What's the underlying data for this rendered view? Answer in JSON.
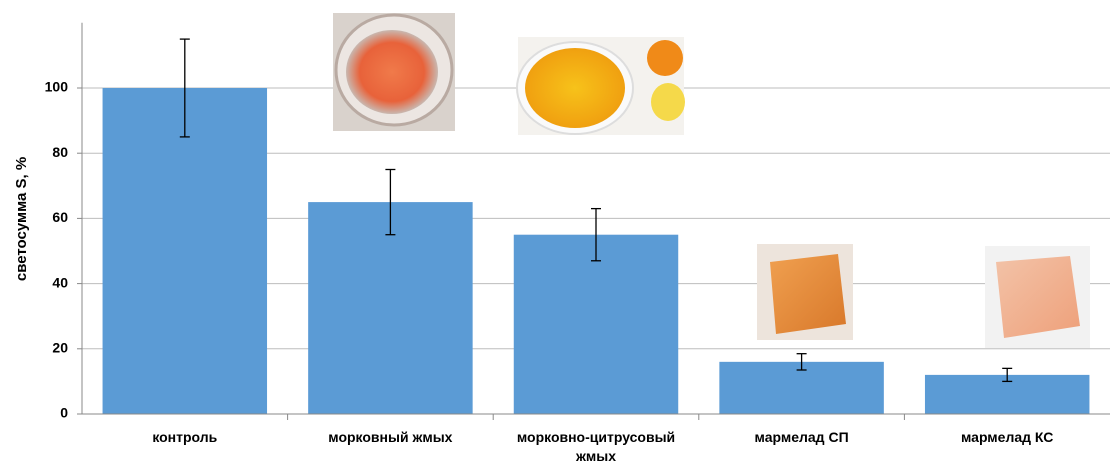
{
  "chart_data": {
    "type": "bar",
    "ylabel": "светосумма S, %",
    "categories": [
      "контроль",
      "морковный жмых",
      "морковно-цитрусовый жмых",
      "мармелад СП",
      "мармелад КС"
    ],
    "values": [
      100,
      65,
      55,
      16,
      12
    ],
    "errors": [
      15,
      10,
      8,
      2.5,
      2
    ],
    "color": "#5b9bd5",
    "ylim": [
      0,
      120
    ],
    "yticks": [
      0,
      20,
      40,
      60,
      80,
      100
    ],
    "grid": true
  }
}
